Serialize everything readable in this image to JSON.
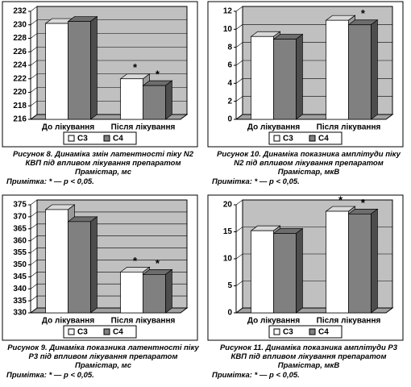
{
  "chart_data": [
    {
      "type": "bar",
      "categories": [
        "До лікування",
        "Після лікування"
      ],
      "series": [
        {
          "name": "С3",
          "color": "#ffffff",
          "values": [
            230.2,
            222.0
          ],
          "annotations": [
            null,
            "*"
          ]
        },
        {
          "name": "С4",
          "color": "#808080",
          "values": [
            230.5,
            221.0
          ],
          "annotations": [
            null,
            "*"
          ]
        }
      ],
      "ylim": [
        216,
        232
      ],
      "yticks": [
        216,
        218,
        220,
        222,
        224,
        226,
        228,
        230,
        232
      ],
      "grid": true,
      "caption": "Рисунок 8. Динаміка змін латентності піку N2 КВП під впливом лікування препаратом Прамістар, мс",
      "note": "Примітка: * — p < 0,05."
    },
    {
      "type": "bar",
      "categories": [
        "До лікування",
        "Після лікування"
      ],
      "series": [
        {
          "name": "С3",
          "color": "#ffffff",
          "values": [
            9.2,
            11.0
          ],
          "annotations": [
            null,
            null
          ]
        },
        {
          "name": "С4",
          "color": "#808080",
          "values": [
            8.9,
            10.5
          ],
          "annotations": [
            null,
            "*"
          ]
        }
      ],
      "ylim": [
        0,
        12
      ],
      "yticks": [
        0,
        2,
        4,
        6,
        8,
        10,
        12
      ],
      "grid": true,
      "caption": "Рисунок 10. Динаміка показника амплітуди піку N2 під впливом лікування препаратом Прамістар, мкВ",
      "note": "Примітка: * — p < 0,05."
    },
    {
      "type": "bar",
      "categories": [
        "До лікування",
        "Після лікування"
      ],
      "series": [
        {
          "name": "С3",
          "color": "#ffffff",
          "values": [
            373,
            347
          ],
          "annotations": [
            null,
            "*"
          ]
        },
        {
          "name": "С4",
          "color": "#808080",
          "values": [
            368,
            346
          ],
          "annotations": [
            null,
            "*"
          ]
        }
      ],
      "ylim": [
        330,
        375
      ],
      "yticks": [
        330,
        335,
        340,
        345,
        350,
        355,
        360,
        365,
        370,
        375
      ],
      "grid": true,
      "caption": "Рисунок 9. Динаміка показника латентності піку Р3 під впливом лікування препаратом Прамістар, мс",
      "note": "Примітка: * — p < 0,05."
    },
    {
      "type": "bar",
      "categories": [
        "До лікування",
        "Після лікування"
      ],
      "series": [
        {
          "name": "С3",
          "color": "#ffffff",
          "values": [
            15.2,
            18.8
          ],
          "annotations": [
            null,
            "*"
          ]
        },
        {
          "name": "С4",
          "color": "#808080",
          "values": [
            14.7,
            18.3
          ],
          "annotations": [
            null,
            "*"
          ]
        }
      ],
      "ylim": [
        0,
        20
      ],
      "yticks": [
        0,
        5,
        10,
        15,
        20
      ],
      "grid": true,
      "caption": "Рисунок 11. Динаміка показника амплітуди Р3 КВП під впливом лікування препаратом Прамістар, мкВ",
      "note": "Примітка: * — p < 0,05."
    }
  ]
}
